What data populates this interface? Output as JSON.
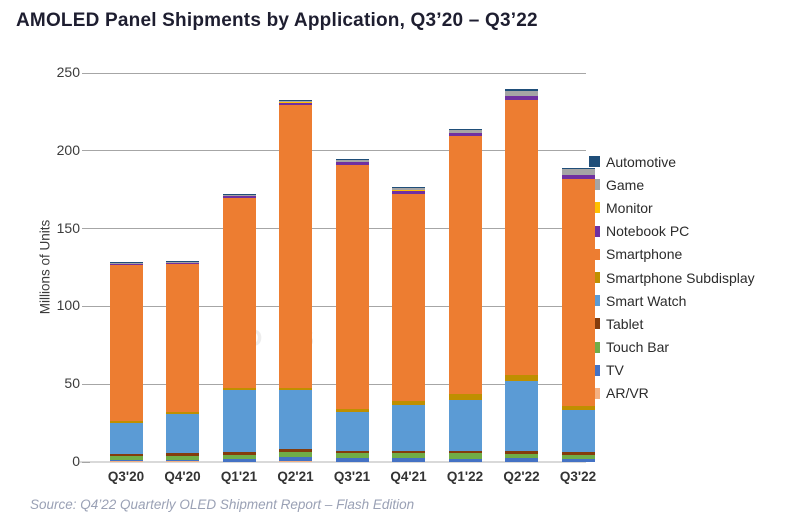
{
  "title": "AMOLED Panel Shipments by Application, Q3’20 – Q3’22",
  "source": "Source: Q4’22 Quarterly OLED Shipment Report – Flash Edition",
  "watermark": {
    "letters": [
      "D",
      "S",
      "C",
      "C"
    ]
  },
  "legend": [
    "Automotive",
    "Game",
    "Monitor",
    "Notebook PC",
    "Smartphone",
    "Smartphone Subdisplay",
    "Smart Watch",
    "Tablet",
    "Touch Bar",
    "TV",
    "AR/VR"
  ],
  "colors": {
    "grid": "#a6a6a6",
    "axis_line": "#d9d9d9",
    "title_text": "#1e1e30",
    "source_text": "#9aa1b5"
  },
  "chart_data": {
    "type": "bar",
    "stacked": true,
    "title": "AMOLED Panel Shipments by Application, Q3’20 – Q3’22",
    "xlabel": "",
    "ylabel": "Millions of Units",
    "ylim": [
      0,
      250
    ],
    "yticks": [
      0,
      50,
      100,
      150,
      200,
      250
    ],
    "grid": "horizontal",
    "legend_position": "right",
    "categories": [
      "Q3'20",
      "Q4'20",
      "Q1'21",
      "Q2'21",
      "Q3'21",
      "Q4'21",
      "Q1'22",
      "Q2'22",
      "Q3'22"
    ],
    "series": [
      {
        "name": "AR/VR",
        "color": "#F4B183",
        "values": [
          0.8,
          0.8,
          0.3,
          0.4,
          0.3,
          0.3,
          0.3,
          0.3,
          0.3
        ]
      },
      {
        "name": "TV",
        "color": "#4472C4",
        "values": [
          0.5,
          0.5,
          1.9,
          2.6,
          2.2,
          2.0,
          1.9,
          2.4,
          1.9
        ]
      },
      {
        "name": "Touch Bar",
        "color": "#70AD47",
        "values": [
          2.5,
          2.8,
          2.6,
          3.4,
          3.2,
          3.2,
          3.4,
          2.6,
          2.6
        ]
      },
      {
        "name": "Tablet",
        "color": "#843C0C",
        "values": [
          1.5,
          1.6,
          1.4,
          1.7,
          1.6,
          1.8,
          1.7,
          1.7,
          1.7
        ]
      },
      {
        "name": "Smart Watch",
        "color": "#5B9BD5",
        "values": [
          20.0,
          25.0,
          40.0,
          38.0,
          25.0,
          29.5,
          32.8,
          45.0,
          26.7
        ]
      },
      {
        "name": "Smartphone Subdisplay",
        "color": "#BF8F00",
        "values": [
          1.2,
          1.3,
          1.3,
          1.4,
          1.7,
          2.2,
          3.9,
          3.9,
          2.6
        ]
      },
      {
        "name": "Smartphone",
        "color": "#ED7D31",
        "values": [
          100.0,
          95.0,
          122.0,
          182.0,
          157.0,
          133.5,
          165.5,
          176.6,
          146.0
        ]
      },
      {
        "name": "Notebook PC",
        "color": "#7030A0",
        "values": [
          0.8,
          0.9,
          1.2,
          1.5,
          1.8,
          1.9,
          1.7,
          2.6,
          2.6
        ]
      },
      {
        "name": "Monitor",
        "color": "#FFC000",
        "values": [
          0.2,
          0.2,
          0.2,
          0.2,
          0.2,
          0.3,
          0.3,
          0.3,
          0.3
        ]
      },
      {
        "name": "Game",
        "color": "#A5A5A5",
        "values": [
          0.7,
          0.6,
          0.7,
          0.8,
          1.0,
          1.5,
          2.0,
          3.0,
          3.3
        ]
      },
      {
        "name": "Automotive",
        "color": "#1F4E79",
        "values": [
          0.3,
          0.3,
          0.4,
          0.5,
          0.5,
          0.8,
          0.5,
          1.6,
          0.5
        ]
      }
    ],
    "totals": [
      128.5,
      129.0,
      172.0,
      232.5,
      194.5,
      177.0,
      214.0,
      240.0,
      188.5
    ]
  }
}
